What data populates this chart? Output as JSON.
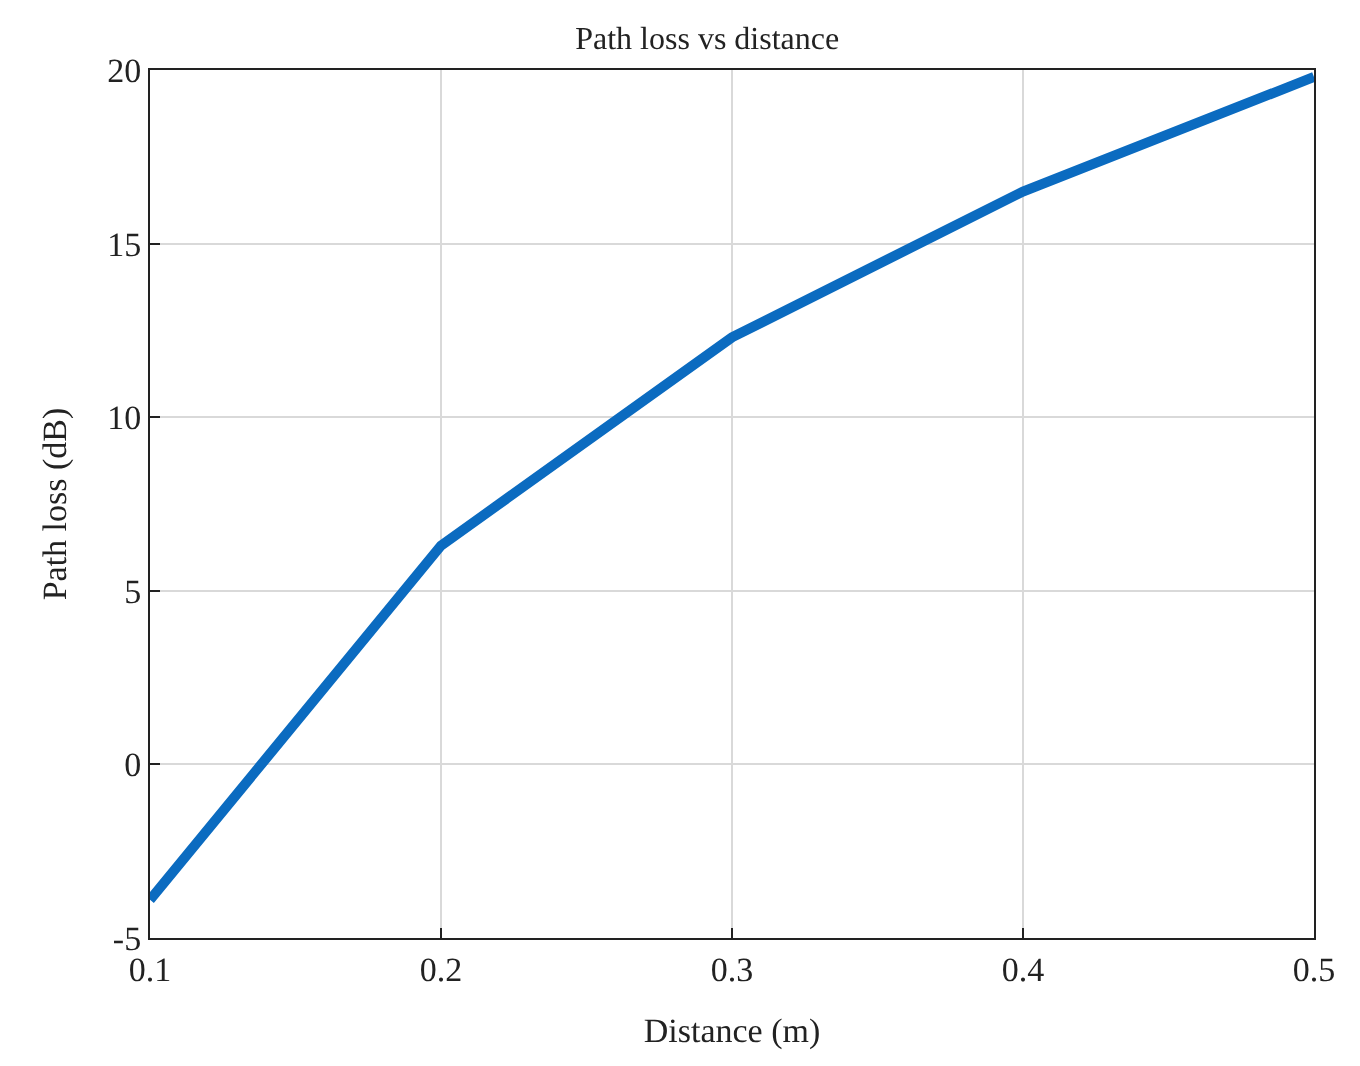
{
  "chart_data": {
    "type": "line",
    "title": "Path loss vs distance",
    "xlabel": "Distance (m)",
    "ylabel": "Path loss (dB)",
    "x": [
      0.1,
      0.2,
      0.3,
      0.4,
      0.5
    ],
    "series": [
      {
        "color": "#0b6bc0",
        "values": [
          -3.9,
          6.3,
          12.3,
          16.5,
          19.8
        ]
      }
    ],
    "xlim": [
      0.1,
      0.5
    ],
    "xticks": [
      0.1,
      0.2,
      0.3,
      0.4,
      0.5
    ],
    "ylim": [
      -5,
      20
    ],
    "yticks": [
      -5,
      0,
      5,
      10,
      15,
      20
    ],
    "grid": true,
    "marker": "none",
    "line_style": "solid"
  }
}
